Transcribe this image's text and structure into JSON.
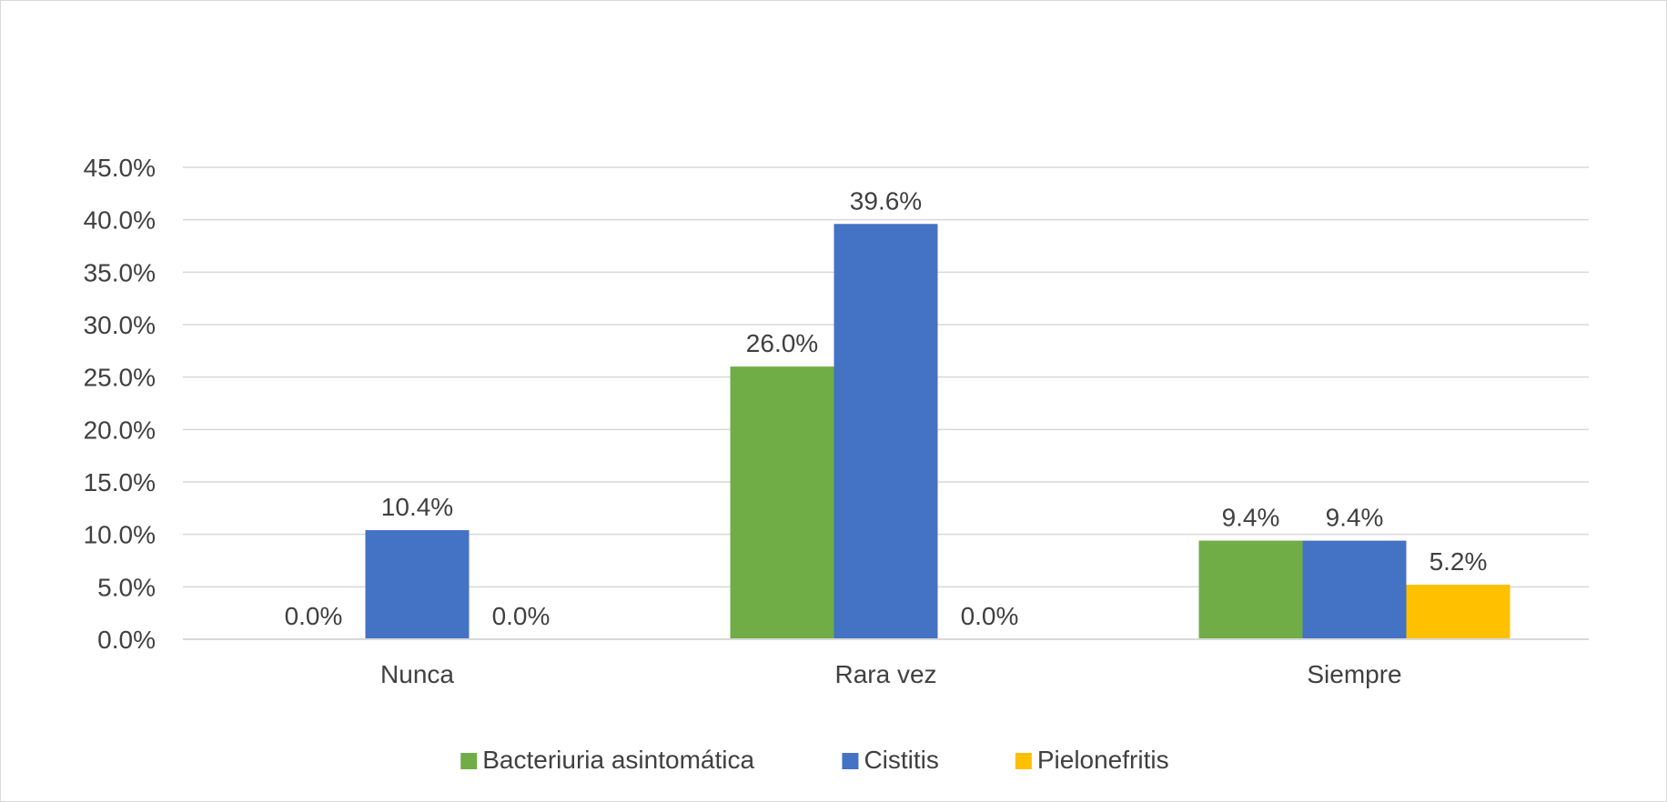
{
  "chart_data": {
    "type": "bar",
    "title": "",
    "xlabel": "",
    "ylabel": "",
    "categories": [
      "Nunca",
      "Rara vez",
      "Siempre"
    ],
    "series": [
      {
        "name": "Bacteriuria asintomática",
        "color": "#70ad47",
        "values": [
          0.0,
          26.0,
          9.4
        ],
        "labels": [
          "0.0%",
          "26.0%",
          "9.4%"
        ]
      },
      {
        "name": "Cistitis",
        "color": "#4472c4",
        "values": [
          10.4,
          39.6,
          9.4
        ],
        "labels": [
          "10.4%",
          "39.6%",
          "9.4%"
        ]
      },
      {
        "name": "Pielonefritis",
        "color": "#ffc000",
        "values": [
          0.0,
          0.0,
          5.2
        ],
        "labels": [
          "0.0%",
          "0.0%",
          "5.2%"
        ]
      }
    ],
    "ylim": [
      0,
      45
    ],
    "yticks": [
      "0.0%",
      "5.0%",
      "10.0%",
      "15.0%",
      "20.0%",
      "25.0%",
      "30.0%",
      "35.0%",
      "40.0%",
      "45.0%"
    ],
    "grid": true,
    "legend_position": "bottom",
    "gridline_color": "#d9d9d9",
    "text_color": "#404040"
  }
}
